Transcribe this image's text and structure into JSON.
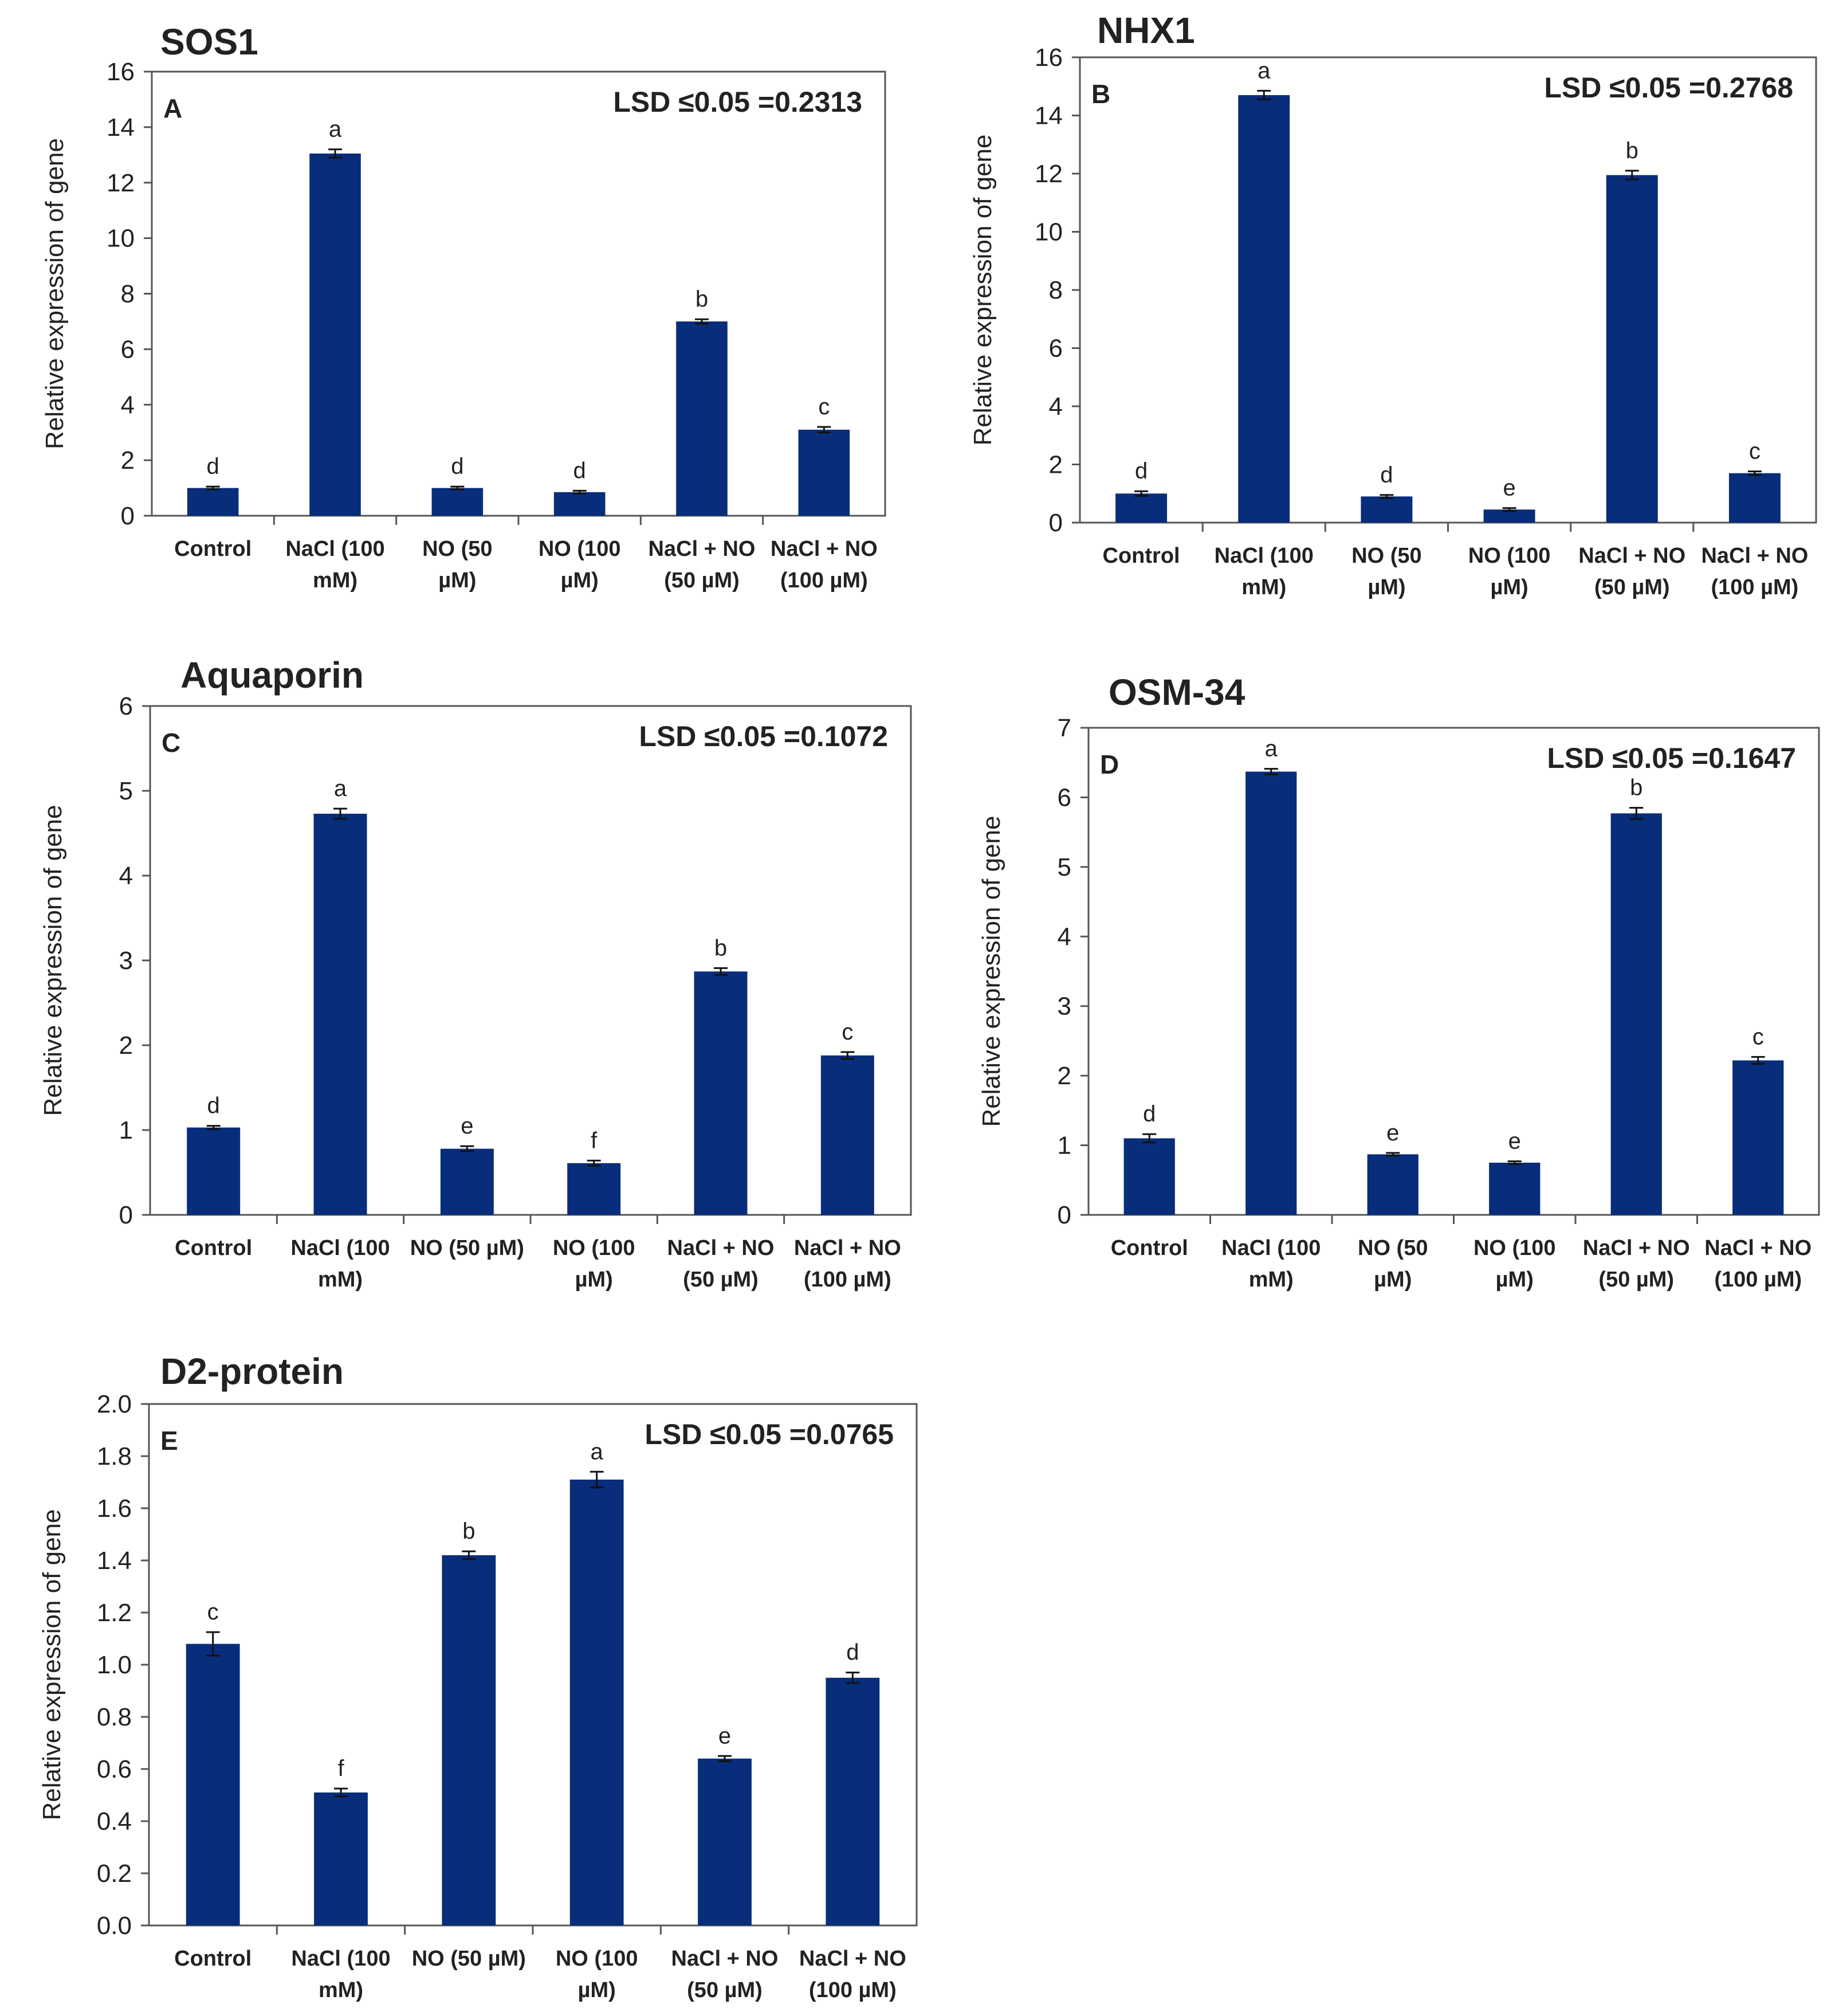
{
  "chart_data": [
    {
      "type": "bar",
      "title": "SOS1",
      "panel": "A",
      "annotation": "LSD ≤0.05 =0.2313",
      "ylabel": "Relative expression of gene",
      "xlabel": "",
      "ylim": [
        0,
        16
      ],
      "yticks": [
        "0",
        "2",
        "4",
        "6",
        "8",
        "10",
        "12",
        "14",
        "16"
      ],
      "categories": [
        [
          "Control"
        ],
        [
          "NaCl (100",
          "mM)"
        ],
        [
          "NO (50",
          "µM)"
        ],
        [
          "NO (100",
          "µM)"
        ],
        [
          "NaCl + NO",
          "(50 µM)"
        ],
        [
          "NaCl + NO",
          "(100 µM)"
        ]
      ],
      "values": [
        1.0,
        13.05,
        1.0,
        0.85,
        7.0,
        3.1
      ],
      "errors": [
        0.05,
        0.15,
        0.05,
        0.05,
        0.08,
        0.1
      ],
      "letters": [
        "d",
        "a",
        "d",
        "d",
        "b",
        "c"
      ],
      "color": "#082d7a"
    },
    {
      "type": "bar",
      "title": "NHX1",
      "panel": "B",
      "annotation": "LSD ≤0.05 =0.2768",
      "ylabel": "Relative expression of gene",
      "xlabel": "",
      "ylim": [
        0,
        16
      ],
      "yticks": [
        "0",
        "2",
        "4",
        "6",
        "8",
        "10",
        "12",
        "14",
        "16"
      ],
      "categories": [
        [
          "Control"
        ],
        [
          "NaCl (100",
          "mM)"
        ],
        [
          "NO (50",
          "µM)"
        ],
        [
          "NO (100",
          "µM)"
        ],
        [
          "NaCl + NO",
          "(50 µM)"
        ],
        [
          "NaCl + NO",
          "(100 µM)"
        ]
      ],
      "values": [
        1.0,
        14.7,
        0.9,
        0.45,
        11.95,
        1.7
      ],
      "errors": [
        0.08,
        0.15,
        0.05,
        0.05,
        0.15,
        0.06
      ],
      "letters": [
        "d",
        "a",
        "d",
        "e",
        "b",
        "c"
      ],
      "color": "#082d7a"
    },
    {
      "type": "bar",
      "title": "Aquaporin",
      "panel": "C",
      "annotation": "LSD ≤0.05 =0.1072",
      "ylabel": "Relative expression of gene",
      "xlabel": "",
      "ylim": [
        0,
        6
      ],
      "yticks": [
        "0",
        "1",
        "2",
        "3",
        "4",
        "5",
        "6"
      ],
      "categories": [
        [
          "Control"
        ],
        [
          "NaCl (100",
          "mM)"
        ],
        [
          "NO (50 µM)"
        ],
        [
          "NO (100",
          "µM)"
        ],
        [
          "NaCl + NO",
          "(50 µM)"
        ],
        [
          "NaCl + NO",
          "(100 µM)"
        ]
      ],
      "values": [
        1.03,
        4.73,
        0.78,
        0.61,
        2.87,
        1.88
      ],
      "errors": [
        0.02,
        0.06,
        0.03,
        0.03,
        0.04,
        0.04
      ],
      "letters": [
        "d",
        "a",
        "e",
        "f",
        "b",
        "c"
      ],
      "color": "#082d7a"
    },
    {
      "type": "bar",
      "title": "OSM-34",
      "panel": "D",
      "annotation": "LSD ≤0.05 =0.1647",
      "ylabel": "Relative expression of gene",
      "xlabel": "",
      "ylim": [
        0,
        7
      ],
      "yticks": [
        "0",
        "1",
        "2",
        "3",
        "4",
        "5",
        "6",
        "7"
      ],
      "categories": [
        [
          "Control"
        ],
        [
          "NaCl (100",
          "mM)"
        ],
        [
          "NO (50",
          "µM)"
        ],
        [
          "NO (100",
          "µM)"
        ],
        [
          "NaCl + NO",
          "(50 µM)"
        ],
        [
          "NaCl + NO",
          "(100 µM)"
        ]
      ],
      "values": [
        1.1,
        6.37,
        0.87,
        0.75,
        5.77,
        2.22
      ],
      "errors": [
        0.06,
        0.04,
        0.02,
        0.02,
        0.08,
        0.05
      ],
      "letters": [
        "d",
        "a",
        "e",
        "e",
        "b",
        "c"
      ],
      "color": "#082d7a"
    },
    {
      "type": "bar",
      "title": "D2-protein",
      "panel": "E",
      "annotation": "LSD ≤0.05 =0.0765",
      "ylabel": "Relative expression of gene",
      "xlabel": "",
      "ylim": [
        0,
        2.0
      ],
      "yticks": [
        "0.0",
        "0.2",
        "0.4",
        "0.6",
        "0.8",
        "1.0",
        "1.2",
        "1.4",
        "1.6",
        "1.8",
        "2.0"
      ],
      "categories": [
        [
          "Control"
        ],
        [
          "NaCl (100",
          "mM)"
        ],
        [
          "NO (50 µM)"
        ],
        [
          "NO (100",
          "µM)"
        ],
        [
          "NaCl + NO",
          "(50 µM)"
        ],
        [
          "NaCl + NO",
          "(100 µM)"
        ]
      ],
      "values": [
        1.08,
        0.51,
        1.42,
        1.71,
        0.64,
        0.95
      ],
      "errors": [
        0.045,
        0.015,
        0.015,
        0.03,
        0.01,
        0.02
      ],
      "letters": [
        "c",
        "f",
        "b",
        "a",
        "e",
        "d"
      ],
      "color": "#082d7a"
    }
  ]
}
